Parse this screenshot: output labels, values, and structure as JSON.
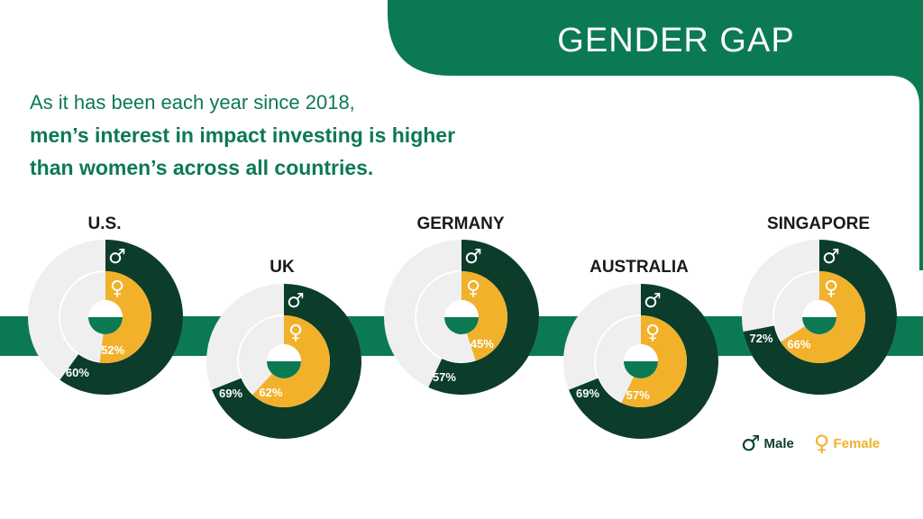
{
  "header": {
    "title": "GENDER GAP",
    "intro_line1": "As it has been each year since 2018,",
    "intro_line2": "men’s interest in impact investing is higher",
    "intro_line3": "than women’s across all countries."
  },
  "legend": {
    "male_symbol": "♂",
    "male_label": "Male",
    "female_symbol": "♀",
    "female_label": "Female"
  },
  "colors": {
    "brand_green": "#0b7a52",
    "male_dark_green": "#0b3d2a",
    "female_yellow": "#f2b12b",
    "track_gray": "#efefef"
  },
  "chart_data": {
    "type": "radial-bar",
    "categories": [
      "U.S.",
      "UK",
      "GERMANY",
      "AUSTRALIA",
      "SINGAPORE"
    ],
    "series": [
      {
        "name": "Male",
        "values": [
          60,
          69,
          57,
          69,
          72
        ],
        "labels": [
          "60%",
          "69%",
          "57%",
          "69%",
          "72%"
        ]
      },
      {
        "name": "Female",
        "values": [
          52,
          62,
          45,
          57,
          66
        ],
        "labels": [
          "52%",
          "62%",
          "45%",
          "57%",
          "66%"
        ]
      }
    ],
    "range": [
      0,
      100
    ]
  }
}
